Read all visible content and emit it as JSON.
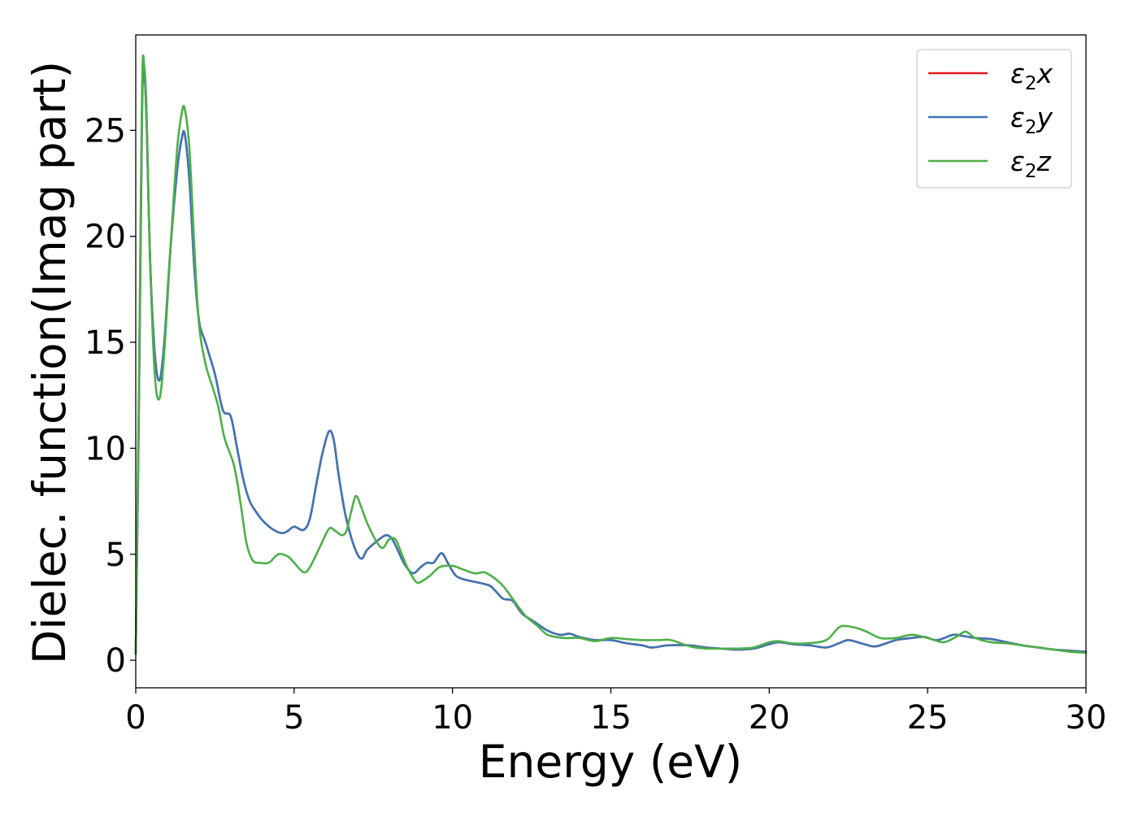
{
  "chart_data": {
    "type": "line",
    "title": "",
    "xlabel": "Energy (eV)",
    "ylabel": "Dielec. function(Imag part)",
    "xlim": [
      0,
      30
    ],
    "ylim": [
      -1.3,
      29.5
    ],
    "xticks": [
      0,
      5,
      10,
      15,
      20,
      25,
      30
    ],
    "yticks": [
      0,
      5,
      10,
      15,
      20,
      25
    ],
    "grid": false,
    "legend_position": "top-right",
    "series": [
      {
        "name": "ε₂x",
        "legend": {
          "base": "ε",
          "sub": "2",
          "suffix": "x"
        },
        "color": "#e41a1c",
        "points": [
          [
            0,
            0.3
          ],
          [
            0.1,
            12
          ],
          [
            0.2,
            26
          ],
          [
            0.27,
            27.8
          ],
          [
            0.35,
            25
          ],
          [
            0.45,
            19
          ],
          [
            0.6,
            14.5
          ],
          [
            0.75,
            13.2
          ],
          [
            0.9,
            15
          ],
          [
            1.1,
            19.5
          ],
          [
            1.3,
            23
          ],
          [
            1.45,
            24.6
          ],
          [
            1.55,
            24.8
          ],
          [
            1.7,
            22.5
          ],
          [
            1.85,
            18.5
          ],
          [
            2.0,
            16
          ],
          [
            2.2,
            15
          ],
          [
            2.5,
            13.5
          ],
          [
            2.75,
            11.8
          ],
          [
            3.0,
            11.5
          ],
          [
            3.2,
            10
          ],
          [
            3.4,
            8.5
          ],
          [
            3.6,
            7.5
          ],
          [
            3.8,
            7
          ],
          [
            4.0,
            6.6
          ],
          [
            4.3,
            6.2
          ],
          [
            4.6,
            6
          ],
          [
            4.8,
            6.1
          ],
          [
            5.0,
            6.3
          ],
          [
            5.3,
            6.15
          ],
          [
            5.5,
            6.7
          ],
          [
            5.7,
            8.3
          ],
          [
            5.9,
            9.8
          ],
          [
            6.1,
            10.8
          ],
          [
            6.25,
            10.4
          ],
          [
            6.4,
            8.8
          ],
          [
            6.6,
            7
          ],
          [
            6.8,
            5.8
          ],
          [
            7.0,
            5
          ],
          [
            7.15,
            4.8
          ],
          [
            7.3,
            5.2
          ],
          [
            7.6,
            5.6
          ],
          [
            7.9,
            5.9
          ],
          [
            8.1,
            5.7
          ],
          [
            8.3,
            5.1
          ],
          [
            8.5,
            4.5
          ],
          [
            8.75,
            4.1
          ],
          [
            9.0,
            4.4
          ],
          [
            9.2,
            4.6
          ],
          [
            9.4,
            4.6
          ],
          [
            9.65,
            5.05
          ],
          [
            9.85,
            4.6
          ],
          [
            10.1,
            4
          ],
          [
            10.4,
            3.8
          ],
          [
            10.7,
            3.7
          ],
          [
            11.0,
            3.6
          ],
          [
            11.2,
            3.5
          ],
          [
            11.4,
            3.2
          ],
          [
            11.6,
            2.9
          ],
          [
            11.9,
            2.8
          ],
          [
            12.2,
            2.2
          ],
          [
            12.6,
            1.8
          ],
          [
            13.0,
            1.4
          ],
          [
            13.4,
            1.2
          ],
          [
            13.7,
            1.25
          ],
          [
            14.0,
            1.1
          ],
          [
            14.5,
            0.95
          ],
          [
            15.0,
            0.95
          ],
          [
            15.5,
            0.8
          ],
          [
            16.0,
            0.7
          ],
          [
            16.3,
            0.6
          ],
          [
            16.8,
            0.7
          ],
          [
            17.5,
            0.7
          ],
          [
            18.0,
            0.6
          ],
          [
            18.5,
            0.55
          ],
          [
            19.0,
            0.5
          ],
          [
            19.5,
            0.55
          ],
          [
            20.0,
            0.75
          ],
          [
            20.3,
            0.85
          ],
          [
            20.8,
            0.75
          ],
          [
            21.3,
            0.7
          ],
          [
            21.8,
            0.6
          ],
          [
            22.2,
            0.8
          ],
          [
            22.5,
            0.95
          ],
          [
            22.9,
            0.8
          ],
          [
            23.3,
            0.65
          ],
          [
            23.6,
            0.75
          ],
          [
            24.0,
            0.95
          ],
          [
            24.5,
            1.05
          ],
          [
            24.9,
            1.1
          ],
          [
            25.3,
            0.95
          ],
          [
            25.8,
            1.2
          ],
          [
            26.1,
            1.15
          ],
          [
            26.5,
            1.05
          ],
          [
            27.0,
            1.0
          ],
          [
            27.5,
            0.85
          ],
          [
            28.0,
            0.7
          ],
          [
            28.5,
            0.6
          ],
          [
            29.0,
            0.5
          ],
          [
            29.5,
            0.45
          ],
          [
            30.0,
            0.4
          ]
        ]
      },
      {
        "name": "ε₂y",
        "legend": {
          "base": "ε",
          "sub": "2",
          "suffix": "y"
        },
        "color": "#3e77b6",
        "points": [
          [
            0,
            0.3
          ],
          [
            0.1,
            12
          ],
          [
            0.2,
            26
          ],
          [
            0.27,
            27.8
          ],
          [
            0.35,
            25
          ],
          [
            0.45,
            19
          ],
          [
            0.6,
            14.5
          ],
          [
            0.75,
            13.2
          ],
          [
            0.9,
            15
          ],
          [
            1.1,
            19.5
          ],
          [
            1.3,
            23
          ],
          [
            1.45,
            24.6
          ],
          [
            1.55,
            24.8
          ],
          [
            1.7,
            22.5
          ],
          [
            1.85,
            18.5
          ],
          [
            2.0,
            16
          ],
          [
            2.2,
            15
          ],
          [
            2.5,
            13.5
          ],
          [
            2.75,
            11.8
          ],
          [
            3.0,
            11.5
          ],
          [
            3.2,
            10
          ],
          [
            3.4,
            8.5
          ],
          [
            3.6,
            7.5
          ],
          [
            3.8,
            7
          ],
          [
            4.0,
            6.6
          ],
          [
            4.3,
            6.2
          ],
          [
            4.6,
            6
          ],
          [
            4.8,
            6.1
          ],
          [
            5.0,
            6.3
          ],
          [
            5.3,
            6.15
          ],
          [
            5.5,
            6.7
          ],
          [
            5.7,
            8.3
          ],
          [
            5.9,
            9.8
          ],
          [
            6.1,
            10.8
          ],
          [
            6.25,
            10.4
          ],
          [
            6.4,
            8.8
          ],
          [
            6.6,
            7
          ],
          [
            6.8,
            5.8
          ],
          [
            7.0,
            5
          ],
          [
            7.15,
            4.8
          ],
          [
            7.3,
            5.2
          ],
          [
            7.6,
            5.6
          ],
          [
            7.9,
            5.9
          ],
          [
            8.1,
            5.7
          ],
          [
            8.3,
            5.1
          ],
          [
            8.5,
            4.5
          ],
          [
            8.75,
            4.1
          ],
          [
            9.0,
            4.4
          ],
          [
            9.2,
            4.6
          ],
          [
            9.4,
            4.6
          ],
          [
            9.65,
            5.05
          ],
          [
            9.85,
            4.6
          ],
          [
            10.1,
            4
          ],
          [
            10.4,
            3.8
          ],
          [
            10.7,
            3.7
          ],
          [
            11.0,
            3.6
          ],
          [
            11.2,
            3.5
          ],
          [
            11.4,
            3.2
          ],
          [
            11.6,
            2.9
          ],
          [
            11.9,
            2.8
          ],
          [
            12.2,
            2.2
          ],
          [
            12.6,
            1.8
          ],
          [
            13.0,
            1.4
          ],
          [
            13.4,
            1.2
          ],
          [
            13.7,
            1.25
          ],
          [
            14.0,
            1.1
          ],
          [
            14.5,
            0.95
          ],
          [
            15.0,
            0.95
          ],
          [
            15.5,
            0.8
          ],
          [
            16.0,
            0.7
          ],
          [
            16.3,
            0.6
          ],
          [
            16.8,
            0.7
          ],
          [
            17.5,
            0.7
          ],
          [
            18.0,
            0.6
          ],
          [
            18.5,
            0.55
          ],
          [
            19.0,
            0.5
          ],
          [
            19.5,
            0.55
          ],
          [
            20.0,
            0.75
          ],
          [
            20.3,
            0.85
          ],
          [
            20.8,
            0.75
          ],
          [
            21.3,
            0.7
          ],
          [
            21.8,
            0.6
          ],
          [
            22.2,
            0.8
          ],
          [
            22.5,
            0.95
          ],
          [
            22.9,
            0.8
          ],
          [
            23.3,
            0.65
          ],
          [
            23.6,
            0.75
          ],
          [
            24.0,
            0.95
          ],
          [
            24.5,
            1.05
          ],
          [
            24.9,
            1.1
          ],
          [
            25.3,
            0.95
          ],
          [
            25.8,
            1.2
          ],
          [
            26.1,
            1.15
          ],
          [
            26.5,
            1.05
          ],
          [
            27.0,
            1.0
          ],
          [
            27.5,
            0.85
          ],
          [
            28.0,
            0.7
          ],
          [
            28.5,
            0.6
          ],
          [
            29.0,
            0.5
          ],
          [
            29.5,
            0.45
          ],
          [
            30.0,
            0.4
          ]
        ]
      },
      {
        "name": "ε₂z",
        "legend": {
          "base": "ε",
          "sub": "2",
          "suffix": "z"
        },
        "color": "#4daf4a",
        "points": [
          [
            0,
            0.3
          ],
          [
            0.1,
            13
          ],
          [
            0.2,
            27
          ],
          [
            0.27,
            28
          ],
          [
            0.35,
            25.5
          ],
          [
            0.45,
            19
          ],
          [
            0.6,
            13.5
          ],
          [
            0.75,
            12.35
          ],
          [
            0.9,
            14.5
          ],
          [
            1.1,
            19.5
          ],
          [
            1.3,
            24
          ],
          [
            1.45,
            25.8
          ],
          [
            1.55,
            26
          ],
          [
            1.7,
            24
          ],
          [
            1.85,
            19.5
          ],
          [
            2.0,
            15.8
          ],
          [
            2.2,
            14
          ],
          [
            2.4,
            13
          ],
          [
            2.6,
            12
          ],
          [
            2.8,
            10.5
          ],
          [
            3.1,
            9.2
          ],
          [
            3.3,
            7.5
          ],
          [
            3.5,
            5.5
          ],
          [
            3.7,
            4.7
          ],
          [
            3.9,
            4.6
          ],
          [
            4.2,
            4.6
          ],
          [
            4.5,
            5.0
          ],
          [
            4.8,
            4.9
          ],
          [
            5.0,
            4.6
          ],
          [
            5.3,
            4.15
          ],
          [
            5.5,
            4.4
          ],
          [
            5.8,
            5.3
          ],
          [
            6.1,
            6.2
          ],
          [
            6.3,
            6.1
          ],
          [
            6.5,
            5.9
          ],
          [
            6.65,
            6.1
          ],
          [
            6.8,
            7.0
          ],
          [
            6.95,
            7.75
          ],
          [
            7.1,
            7.3
          ],
          [
            7.3,
            6.5
          ],
          [
            7.6,
            5.6
          ],
          [
            7.8,
            5.3
          ],
          [
            8.0,
            5.7
          ],
          [
            8.2,
            5.7
          ],
          [
            8.4,
            5.0
          ],
          [
            8.6,
            4.3
          ],
          [
            8.85,
            3.7
          ],
          [
            9.0,
            3.7
          ],
          [
            9.3,
            4.0
          ],
          [
            9.6,
            4.4
          ],
          [
            10.0,
            4.45
          ],
          [
            10.3,
            4.3
          ],
          [
            10.7,
            4.1
          ],
          [
            11.0,
            4.15
          ],
          [
            11.3,
            3.9
          ],
          [
            11.6,
            3.5
          ],
          [
            11.9,
            2.9
          ],
          [
            12.3,
            2.1
          ],
          [
            12.7,
            1.6
          ],
          [
            13.0,
            1.2
          ],
          [
            13.5,
            1.05
          ],
          [
            14.0,
            1.05
          ],
          [
            14.5,
            0.9
          ],
          [
            15.0,
            1.05
          ],
          [
            15.5,
            1.0
          ],
          [
            16.0,
            0.95
          ],
          [
            16.5,
            0.95
          ],
          [
            16.9,
            0.95
          ],
          [
            17.5,
            0.65
          ],
          [
            18.0,
            0.55
          ],
          [
            18.5,
            0.55
          ],
          [
            19.0,
            0.55
          ],
          [
            19.5,
            0.6
          ],
          [
            20.0,
            0.85
          ],
          [
            20.3,
            0.9
          ],
          [
            20.7,
            0.8
          ],
          [
            21.2,
            0.8
          ],
          [
            21.8,
            0.95
          ],
          [
            22.2,
            1.55
          ],
          [
            22.5,
            1.6
          ],
          [
            23.0,
            1.4
          ],
          [
            23.5,
            1.05
          ],
          [
            24.0,
            1.05
          ],
          [
            24.5,
            1.2
          ],
          [
            25.0,
            1.05
          ],
          [
            25.5,
            0.85
          ],
          [
            25.9,
            1.1
          ],
          [
            26.2,
            1.35
          ],
          [
            26.5,
            1.05
          ],
          [
            27.0,
            0.85
          ],
          [
            27.5,
            0.8
          ],
          [
            28.0,
            0.7
          ],
          [
            28.5,
            0.6
          ],
          [
            29.0,
            0.5
          ],
          [
            29.5,
            0.4
          ],
          [
            30.0,
            0.35
          ]
        ]
      }
    ]
  }
}
